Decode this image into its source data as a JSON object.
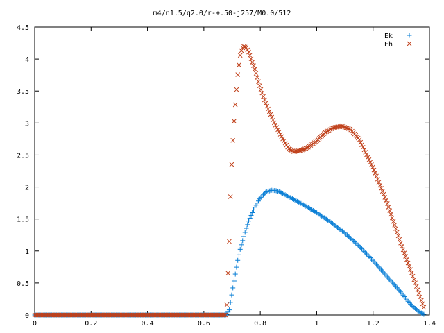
{
  "chart_data": {
    "type": "scatter",
    "title": "m4/n1.5/q2.0/r-+.50-j257/M0.0/512",
    "xlabel": "",
    "ylabel": "",
    "xlim": [
      0,
      1.4
    ],
    "ylim": [
      0,
      4.5
    ],
    "grid": false,
    "legend": "top-right",
    "x_ticks": [
      "0",
      "0.2",
      "0.4",
      "0.6",
      "0.8",
      "1",
      "1.2",
      "1.4"
    ],
    "x_tick_values": [
      0,
      0.2,
      0.4,
      0.6,
      0.8,
      1.0,
      1.2,
      1.4
    ],
    "y_ticks": [
      "0",
      "0.5",
      "1",
      "1.5",
      "2",
      "2.5",
      "3",
      "3.5",
      "4",
      "4.5"
    ],
    "y_tick_values": [
      0,
      0.5,
      1.0,
      1.5,
      2.0,
      2.5,
      3.0,
      3.5,
      4.0,
      4.5
    ],
    "series": [
      {
        "name": "Ek",
        "marker": "plus",
        "color": "#0a7fd6",
        "x": [
          0.0,
          0.1,
          0.2,
          0.3,
          0.4,
          0.5,
          0.6,
          0.68,
          0.69,
          0.7,
          0.71,
          0.72,
          0.73,
          0.74,
          0.75,
          0.76,
          0.78,
          0.8,
          0.82,
          0.84,
          0.86,
          0.88,
          0.9,
          0.95,
          1.0,
          1.05,
          1.1,
          1.15,
          1.2,
          1.25,
          1.3,
          1.33,
          1.36,
          1.38
        ],
        "y": [
          0,
          0,
          0,
          0,
          0,
          0,
          0,
          0,
          0.08,
          0.35,
          0.6,
          0.85,
          1.05,
          1.2,
          1.35,
          1.48,
          1.68,
          1.83,
          1.92,
          1.95,
          1.94,
          1.9,
          1.85,
          1.73,
          1.6,
          1.45,
          1.28,
          1.08,
          0.85,
          0.6,
          0.35,
          0.18,
          0.06,
          0.01
        ]
      },
      {
        "name": "Eh",
        "marker": "cross",
        "color": "#c0401a",
        "x": [
          0.0,
          0.1,
          0.2,
          0.3,
          0.4,
          0.5,
          0.6,
          0.68,
          0.69,
          0.695,
          0.7,
          0.705,
          0.71,
          0.72,
          0.73,
          0.74,
          0.75,
          0.76,
          0.78,
          0.8,
          0.82,
          0.85,
          0.88,
          0.9,
          0.92,
          0.95,
          0.97,
          1.0,
          1.03,
          1.06,
          1.09,
          1.12,
          1.15,
          1.2,
          1.25,
          1.3,
          1.35,
          1.38
        ],
        "y": [
          0,
          0,
          0,
          0,
          0,
          0,
          0,
          0,
          1.15,
          1.96,
          2.5,
          2.89,
          3.2,
          3.75,
          4.1,
          4.2,
          4.18,
          4.1,
          3.85,
          3.55,
          3.3,
          3.0,
          2.75,
          2.6,
          2.55,
          2.58,
          2.62,
          2.72,
          2.85,
          2.93,
          2.95,
          2.9,
          2.75,
          2.3,
          1.75,
          1.1,
          0.5,
          0.12
        ]
      }
    ]
  }
}
